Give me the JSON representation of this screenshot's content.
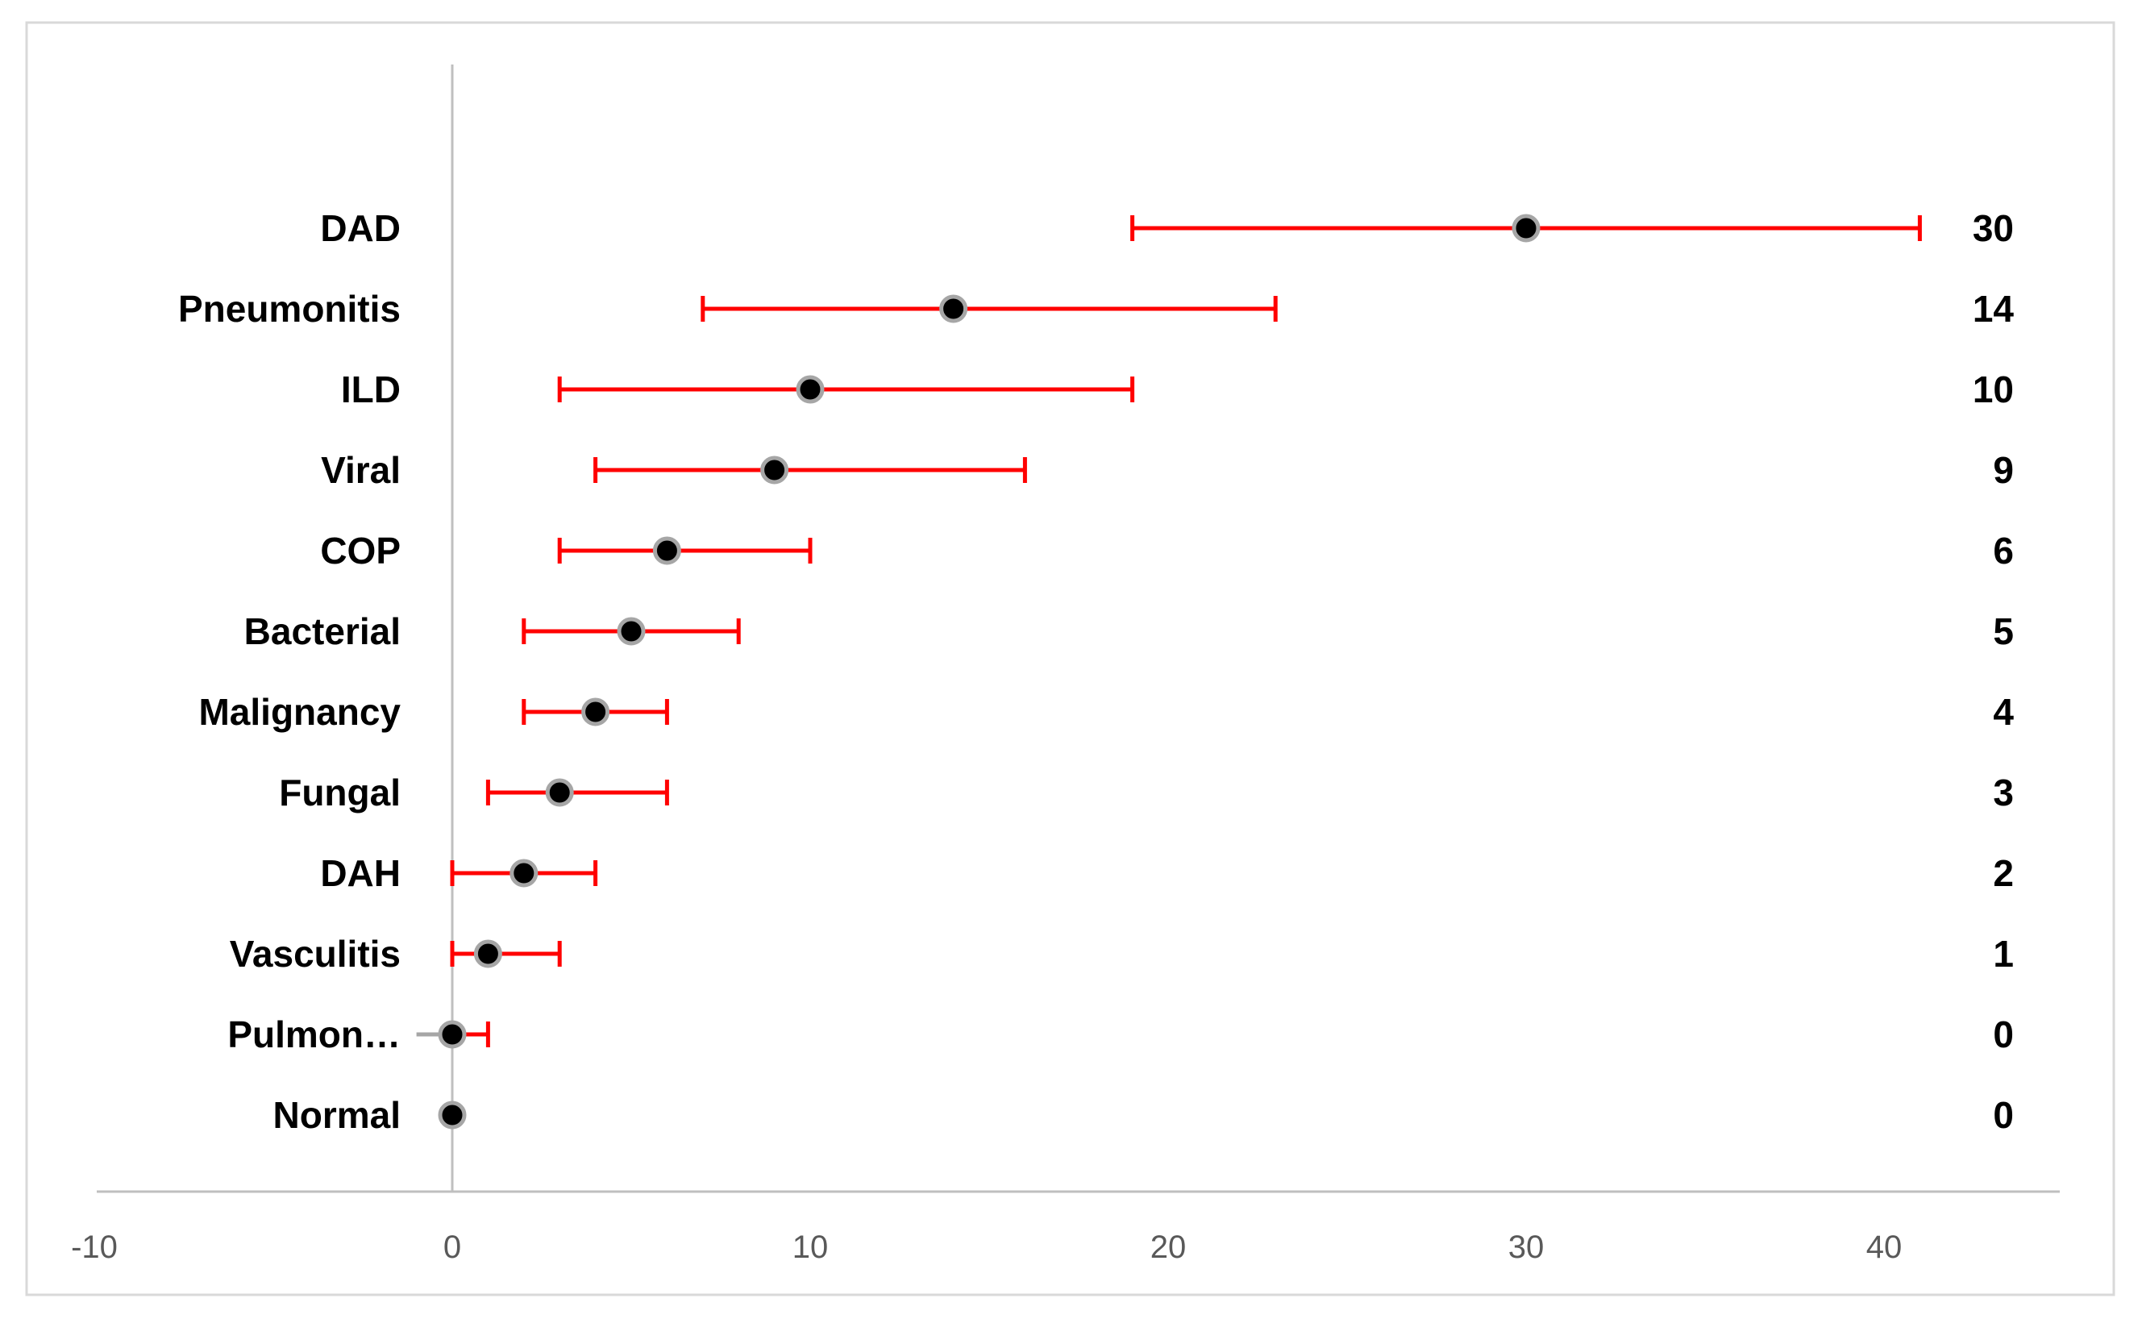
{
  "chart_data": {
    "type": "scatter",
    "title": "",
    "xlabel": "",
    "ylabel": "",
    "xlim": [
      -10,
      45
    ],
    "xticks": [
      -10,
      0,
      10,
      20,
      30,
      40
    ],
    "grid": false,
    "legend": "none",
    "colors": {
      "error_bar": "#ff0000",
      "marker_fill": "#000000",
      "marker_edge": "#a6a6a6",
      "axis_line": "#bfbfbf",
      "frame": "#d9d9d9",
      "tick_text": "#595959"
    },
    "categories": [
      "DAD",
      "Pneumonitis",
      "ILD",
      "Viral",
      "COP",
      "Bacterial",
      "Malignancy",
      "Fungal",
      "DAH",
      "Vasculitis",
      "Pulmon…",
      "Normal"
    ],
    "values": [
      30,
      14,
      10,
      9,
      6,
      5,
      4,
      3,
      2,
      1,
      0,
      0
    ],
    "value_labels": [
      "30",
      "14",
      "10",
      "9",
      "6",
      "5",
      "4",
      "3",
      "2",
      "1",
      "0",
      "0"
    ],
    "error_low": [
      19,
      7,
      3,
      4,
      3,
      2,
      2,
      1,
      0,
      0,
      -1,
      null
    ],
    "error_high": [
      41,
      23,
      19,
      16,
      10,
      8,
      6,
      6,
      4,
      3,
      1,
      null
    ],
    "error_colors": [
      "#ff0000",
      "#ff0000",
      "#ff0000",
      "#ff0000",
      "#ff0000",
      "#ff0000",
      "#ff0000",
      "#ff0000",
      "#ff0000",
      "#ff0000",
      [
        "#a6a6a6",
        "#ff0000"
      ],
      null
    ]
  }
}
